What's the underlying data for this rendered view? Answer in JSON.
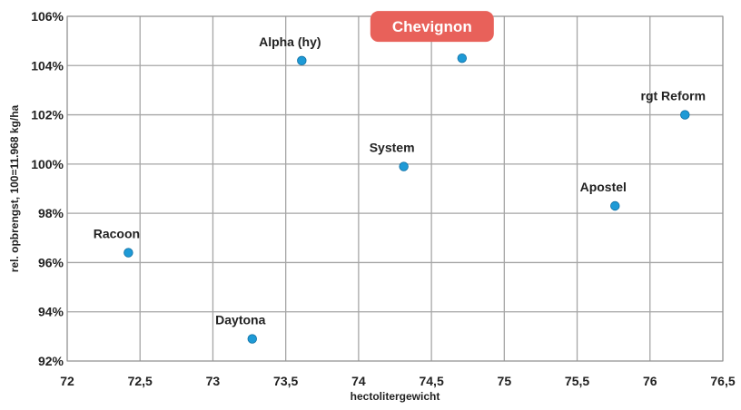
{
  "chart_data": {
    "type": "scatter",
    "title": "",
    "xlabel": "hectolitergewicht",
    "ylabel": "rel. opbrengst, 100=11.968 kg/ha",
    "xlim": [
      72,
      76.5
    ],
    "ylim": [
      92,
      106
    ],
    "x_ticks": [
      72,
      72.5,
      73,
      73.5,
      74,
      74.5,
      75,
      75.5,
      76,
      76.5
    ],
    "x_tick_labels": [
      "72",
      "72,5",
      "73",
      "73,5",
      "74",
      "74,5",
      "75",
      "75,5",
      "76",
      "76,5"
    ],
    "y_ticks": [
      92,
      94,
      96,
      98,
      100,
      102,
      104,
      106
    ],
    "y_tick_labels": [
      "92%",
      "94%",
      "96%",
      "98%",
      "100%",
      "102%",
      "104%",
      "106%"
    ],
    "grid": true,
    "marker_color": "#1e9ad6",
    "highlight_color": "#e8615a",
    "points": [
      {
        "label": "Racoon",
        "x": 72.42,
        "y": 96.4
      },
      {
        "label": "Daytona",
        "x": 73.27,
        "y": 92.9
      },
      {
        "label": "Alpha (hy)",
        "x": 73.61,
        "y": 104.2
      },
      {
        "label": "System",
        "x": 74.31,
        "y": 99.9
      },
      {
        "label": "Chevignon",
        "x": 74.71,
        "y": 104.3,
        "highlight": true
      },
      {
        "label": "Apostel",
        "x": 75.76,
        "y": 98.3
      },
      {
        "label": "rgt Reform",
        "x": 76.24,
        "y": 102.0
      }
    ]
  }
}
